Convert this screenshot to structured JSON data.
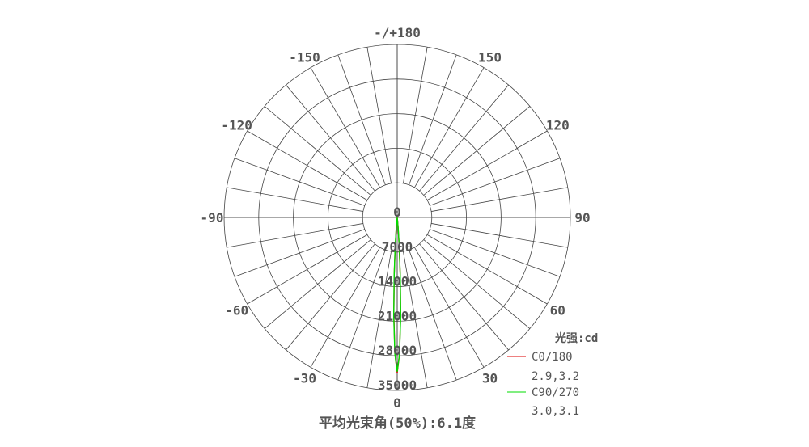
{
  "chart_data": {
    "type": "polar",
    "unit_label": "光强:cd",
    "radial_ticks": [
      0,
      7000,
      14000,
      21000,
      28000,
      35000
    ],
    "radial_max": 35000,
    "angle_labels": [
      {
        "angle": 0,
        "text": "0"
      },
      {
        "angle": 30,
        "text": "30"
      },
      {
        "angle": 60,
        "text": "60"
      },
      {
        "angle": 90,
        "text": "90"
      },
      {
        "angle": 120,
        "text": "120"
      },
      {
        "angle": 150,
        "text": "150"
      },
      {
        "angle": 180,
        "text": "-/+180"
      },
      {
        "angle": -150,
        "text": "-150"
      },
      {
        "angle": -120,
        "text": "-120"
      },
      {
        "angle": -90,
        "text": "-90"
      },
      {
        "angle": -60,
        "text": "-60"
      },
      {
        "angle": -30,
        "text": "-30"
      }
    ],
    "grid": true,
    "angle_grid_step": 10,
    "legend_position": "bottom-right",
    "series": [
      {
        "name": "C0/180",
        "beam_angles": "2.9,3.2",
        "color": "#dd0000",
        "angles": [
          -8,
          -6,
          -5,
          -4,
          -3,
          -2,
          -1,
          0,
          1,
          2,
          3,
          4,
          5,
          6,
          8
        ],
        "values": [
          0,
          600,
          2000,
          5500,
          11500,
          19500,
          27500,
          31500,
          27500,
          19500,
          11500,
          5500,
          2000,
          600,
          0
        ]
      },
      {
        "name": "C90/270",
        "beam_angles": "3.0,3.1",
        "color": "#00dd00",
        "angles": [
          -8,
          -6,
          -5,
          -4,
          -3,
          -2,
          -1,
          0,
          1,
          2,
          3,
          4,
          5,
          6,
          8
        ],
        "values": [
          0,
          700,
          2200,
          6000,
          12000,
          20000,
          27600,
          31200,
          27600,
          20000,
          12000,
          6000,
          2200,
          700,
          0
        ]
      }
    ]
  },
  "caption": "平均光束角(50%):6.1度"
}
